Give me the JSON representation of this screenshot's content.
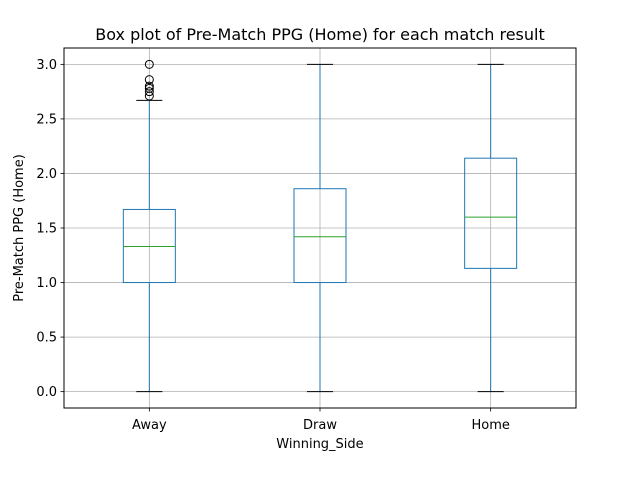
{
  "chart_data": {
    "type": "box",
    "title": "Box plot of Pre-Match PPG (Home) for each match result",
    "xlabel": "Winning_Side",
    "ylabel": "Pre-Match PPG (Home)",
    "ylim": [
      -0.15,
      3.15
    ],
    "yticks": [
      "0.0",
      "0.5",
      "1.0",
      "1.5",
      "2.0",
      "2.5",
      "3.0"
    ],
    "grid": true,
    "categories": [
      "Away",
      "Draw",
      "Home"
    ],
    "boxes": [
      {
        "name": "Away",
        "whisker_low": 0.0,
        "q1": 1.0,
        "median": 1.33,
        "q3": 1.67,
        "whisker_high": 2.67,
        "outliers": [
          2.71,
          2.75,
          2.78,
          2.8,
          2.86,
          3.0
        ]
      },
      {
        "name": "Draw",
        "whisker_low": 0.0,
        "q1": 1.0,
        "median": 1.42,
        "q3": 1.86,
        "whisker_high": 3.0,
        "outliers": []
      },
      {
        "name": "Home",
        "whisker_low": 0.0,
        "q1": 1.13,
        "median": 1.6,
        "q3": 2.14,
        "whisker_high": 3.0,
        "outliers": []
      }
    ],
    "colors": {
      "box": "#1f77b4",
      "median": "#2ca02c",
      "grid": "#b0b0b0",
      "outlier": "#000000"
    }
  }
}
